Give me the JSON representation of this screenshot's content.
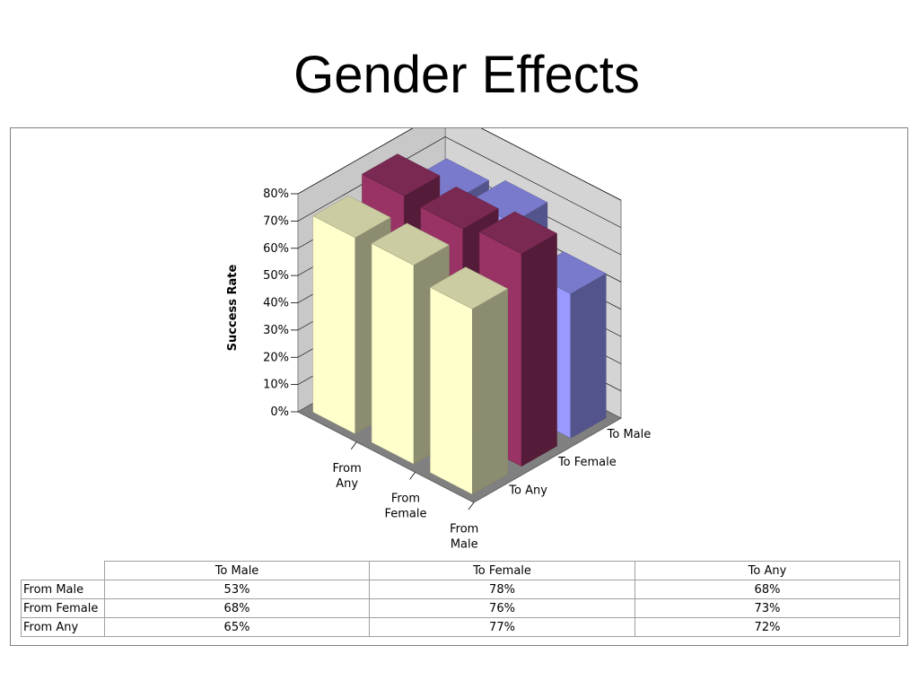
{
  "slide": {
    "title": "Gender Effects"
  },
  "colors": {
    "series1": "#FFFFCC",
    "series2": "#993366",
    "series3": "#9999FF",
    "floor": "#808080",
    "wall": "#C0C0C0"
  },
  "chart_data": {
    "type": "bar",
    "subtype": "3d-column",
    "title": "",
    "xlabel": "",
    "ylabel": "Success Rate",
    "ylim": [
      0,
      0.8
    ],
    "yticks": [
      "0%",
      "10%",
      "20%",
      "30%",
      "40%",
      "50%",
      "60%",
      "70%",
      "80%"
    ],
    "grid": true,
    "categories": [
      "From Any",
      "From Female",
      "From Male"
    ],
    "series": [
      {
        "name": "To Any",
        "values": [
          0.72,
          0.73,
          0.68
        ]
      },
      {
        "name": "To Female",
        "values": [
          0.77,
          0.76,
          0.78
        ]
      },
      {
        "name": "To Male",
        "values": [
          0.65,
          0.68,
          0.53
        ]
      }
    ],
    "category_labels": [
      [
        "From",
        "Any"
      ],
      [
        "From",
        "Female"
      ],
      [
        "From",
        "Male"
      ]
    ],
    "series_labels": [
      "To Any",
      "To Female",
      "To Male"
    ]
  },
  "table": {
    "headers": [
      "To Male",
      "To Female",
      "To Any"
    ],
    "rows": [
      {
        "label": "From Male",
        "values": [
          "53%",
          "78%",
          "68%"
        ]
      },
      {
        "label": "From Female",
        "values": [
          "68%",
          "76%",
          "73%"
        ]
      },
      {
        "label": "From Any",
        "values": [
          "65%",
          "77%",
          "72%"
        ]
      }
    ]
  }
}
